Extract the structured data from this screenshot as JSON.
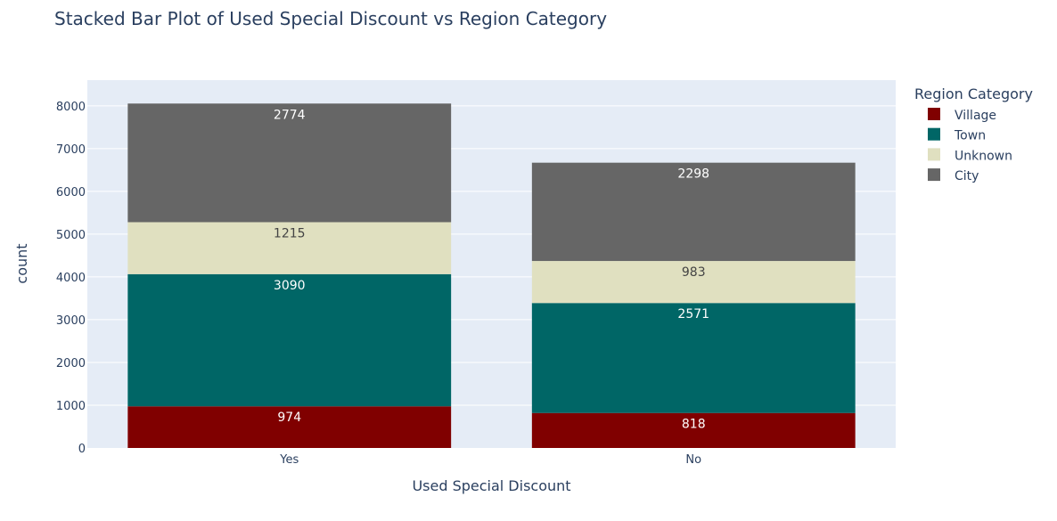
{
  "chart_data": {
    "type": "bar",
    "stacked": true,
    "title": "Stacked Bar Plot of Used Special Discount vs Region Category",
    "xlabel": "Used Special Discount",
    "ylabel": "count",
    "categories": [
      "Yes",
      "No"
    ],
    "ylim": [
      0,
      8600
    ],
    "yticks": [
      "0",
      "1000",
      "2000",
      "3000",
      "4000",
      "5000",
      "6000",
      "7000",
      "8000"
    ],
    "grid": true,
    "legend": {
      "title": "Region Category",
      "placement": "top-right",
      "entries": [
        "Village",
        "Town",
        "Unknown",
        "City"
      ]
    },
    "series": [
      {
        "name": "Village",
        "values": [
          974,
          818
        ],
        "color": "#800000",
        "label_color": "#ffffff"
      },
      {
        "name": "Town",
        "values": [
          3090,
          2571
        ],
        "color": "#006666",
        "label_color": "#ffffff"
      },
      {
        "name": "Unknown",
        "values": [
          1215,
          983
        ],
        "color": "#e0e0c0",
        "label_color": "#444444"
      },
      {
        "name": "City",
        "values": [
          2774,
          2298
        ],
        "color": "#666666",
        "label_color": "#ffffff"
      }
    ],
    "plot_background": "#e5ecf6",
    "text_color": "#2a3f5f"
  }
}
